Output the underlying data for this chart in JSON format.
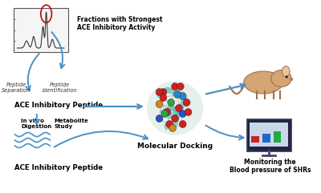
{
  "bg_color": "#ffffff",
  "text_color": "#000000",
  "arrow_color": "#4a90c4",
  "red_circle_color": "#cc0000",
  "labels": {
    "fractions": "Fractions with Strongest\nACE Inhibitory Activity",
    "peptide_sep": "Peptide\nSeparation",
    "peptide_id": "Peptide\nIdentification",
    "ace_peptide1": "ACE Inhibitory Peptide",
    "in_vitro": "In vitro\nDigestion",
    "metabolite": "Metabolite\nStudy",
    "molecular_docking": "Molecular Docking",
    "monitoring": "Monitoring the\nBlood pressure of SHRs",
    "ace_peptide2": "ACE Inhibitory Peptide"
  },
  "figsize": [
    4.0,
    2.41
  ],
  "dpi": 100
}
